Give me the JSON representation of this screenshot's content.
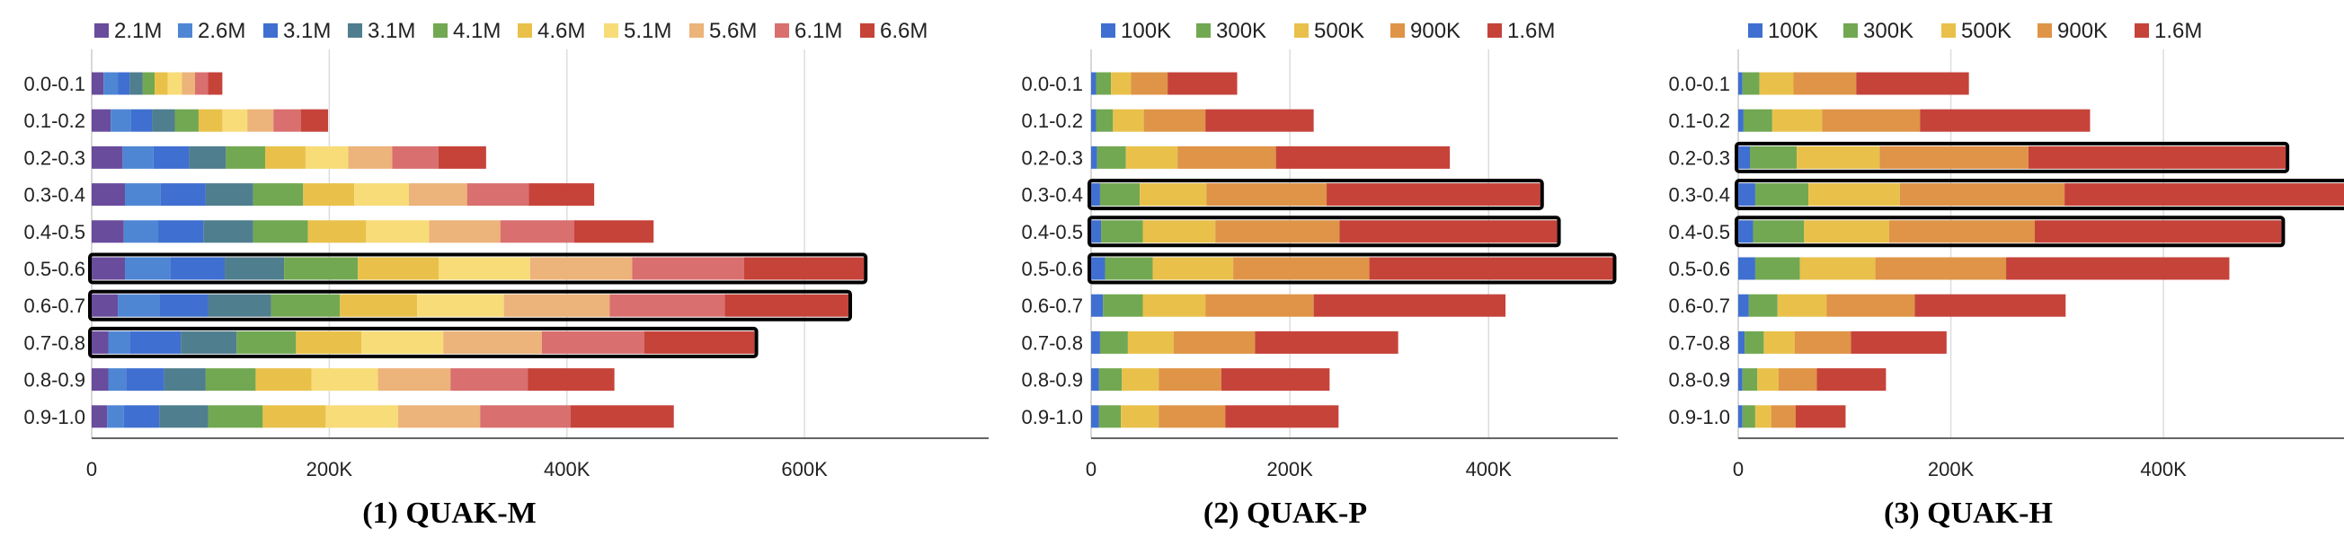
{
  "chart_data": [
    {
      "type": "bar",
      "orientation": "horizontal",
      "stacked": true,
      "title": "(1) QUAK-M",
      "categories": [
        "0.0-0.1",
        "0.1-0.2",
        "0.2-0.3",
        "0.3-0.4",
        "0.4-0.5",
        "0.5-0.6",
        "0.6-0.7",
        "0.7-0.8",
        "0.8-0.9",
        "0.9-1.0"
      ],
      "series": [
        {
          "name": "2.1M",
          "color": "#6a4c9c",
          "values": [
            10000,
            16000,
            26000,
            28000,
            27000,
            28000,
            22000,
            14000,
            14000,
            13000
          ]
        },
        {
          "name": "2.6M",
          "color": "#4e86d4",
          "values": [
            12000,
            17000,
            26000,
            30000,
            29000,
            38000,
            35000,
            18000,
            15000,
            14000
          ]
        },
        {
          "name": "3.1M",
          "color": "#3f6fd0",
          "values": [
            10000,
            18000,
            30000,
            38000,
            38000,
            46000,
            41000,
            43000,
            32000,
            30000
          ]
        },
        {
          "name": "3.1M",
          "color": "#4f7e8e",
          "values": [
            11000,
            19000,
            31000,
            40000,
            42000,
            50000,
            53000,
            47000,
            35000,
            41000
          ]
        },
        {
          "name": "4.1M",
          "color": "#72a852",
          "values": [
            10000,
            20000,
            33000,
            42000,
            46000,
            62000,
            58000,
            50000,
            42000,
            46000
          ]
        },
        {
          "name": "4.6M",
          "color": "#e9c14a",
          "values": [
            11000,
            20000,
            34000,
            43000,
            49000,
            68000,
            65000,
            55000,
            47000,
            53000
          ]
        },
        {
          "name": "5.1M",
          "color": "#f7dc78",
          "values": [
            12000,
            21000,
            36000,
            46000,
            53000,
            77000,
            73000,
            69000,
            56000,
            61000
          ]
        },
        {
          "name": "5.6M",
          "color": "#ecb37a",
          "values": [
            11000,
            22000,
            37000,
            49000,
            60000,
            86000,
            89000,
            83000,
            61000,
            69000
          ]
        },
        {
          "name": "6.1M",
          "color": "#d96f6f",
          "values": [
            11000,
            23000,
            39000,
            52000,
            62000,
            94000,
            97000,
            86000,
            65000,
            76000
          ]
        },
        {
          "name": "6.6M",
          "color": "#c6433a",
          "values": [
            12000,
            23000,
            40000,
            55000,
            67000,
            101000,
            104000,
            93000,
            73000,
            87000
          ]
        }
      ],
      "highlighted": [
        "0.5-0.6",
        "0.6-0.7",
        "0.7-0.8"
      ],
      "xlim": [
        0,
        755000
      ],
      "xticks": [
        0,
        200000,
        400000,
        600000
      ],
      "xtick_labels": [
        "0",
        "200K",
        "400K",
        "600K"
      ],
      "grid": true,
      "legend": "top"
    },
    {
      "type": "bar",
      "orientation": "horizontal",
      "stacked": true,
      "title": "(2) QUAK-P",
      "categories": [
        "0.0-0.1",
        "0.1-0.2",
        "0.2-0.3",
        "0.3-0.4",
        "0.4-0.5",
        "0.5-0.6",
        "0.6-0.7",
        "0.7-0.8",
        "0.8-0.9",
        "0.9-1.0"
      ],
      "series": [
        {
          "name": "100K",
          "color": "#3f6fd0",
          "values": [
            5000,
            5000,
            6000,
            9000,
            10000,
            14000,
            12000,
            9000,
            8000,
            8000
          ]
        },
        {
          "name": "300K",
          "color": "#72a852",
          "values": [
            15000,
            17000,
            29000,
            40000,
            42000,
            48000,
            40000,
            28000,
            23000,
            22000
          ]
        },
        {
          "name": "500K",
          "color": "#e9c14a",
          "values": [
            20000,
            31000,
            52000,
            67000,
            73000,
            81000,
            63000,
            46000,
            37000,
            38000
          ]
        },
        {
          "name": "900K",
          "color": "#df9447",
          "values": [
            37000,
            62000,
            99000,
            121000,
            125000,
            137000,
            109000,
            82000,
            63000,
            67000
          ]
        },
        {
          "name": "1.6M",
          "color": "#c6433a",
          "values": [
            70000,
            109000,
            175000,
            215000,
            219000,
            245000,
            193000,
            144000,
            109000,
            114000
          ]
        }
      ],
      "highlighted": [
        "0.3-0.4",
        "0.4-0.5",
        "0.5-0.6"
      ],
      "xlim": [
        0,
        530000
      ],
      "xticks": [
        0,
        200000,
        400000
      ],
      "xtick_labels": [
        "0",
        "200K",
        "400K"
      ],
      "grid": true,
      "legend": "top"
    },
    {
      "type": "bar",
      "orientation": "horizontal",
      "stacked": true,
      "title": "(3) QUAK-H",
      "categories": [
        "0.0-0.1",
        "0.1-0.2",
        "0.2-0.3",
        "0.3-0.4",
        "0.4-0.5",
        "0.5-0.6",
        "0.6-0.7",
        "0.7-0.8",
        "0.8-0.9",
        "0.9-1.0"
      ],
      "series": [
        {
          "name": "100K",
          "color": "#3f6fd0",
          "values": [
            4000,
            5000,
            11000,
            16000,
            14000,
            16000,
            10000,
            6000,
            4000,
            4000
          ]
        },
        {
          "name": "300K",
          "color": "#72a852",
          "values": [
            16000,
            27000,
            44000,
            50000,
            48000,
            42000,
            27000,
            18000,
            14000,
            12000
          ]
        },
        {
          "name": "500K",
          "color": "#e9c14a",
          "values": [
            32000,
            47000,
            78000,
            86000,
            80000,
            71000,
            46000,
            29000,
            20000,
            15000
          ]
        },
        {
          "name": "900K",
          "color": "#df9447",
          "values": [
            59000,
            92000,
            140000,
            155000,
            137000,
            123000,
            83000,
            53000,
            36000,
            23000
          ]
        },
        {
          "name": "1.6M",
          "color": "#c6433a",
          "values": [
            106000,
            160000,
            242000,
            268000,
            232000,
            210000,
            142000,
            90000,
            65000,
            47000
          ]
        }
      ],
      "highlighted": [
        "0.2-0.3",
        "0.3-0.4",
        "0.4-0.5"
      ],
      "xlim": [
        0,
        580000
      ],
      "xticks": [
        0,
        200000,
        400000
      ],
      "xtick_labels": [
        "0",
        "200K",
        "400K"
      ],
      "grid": true,
      "legend": "top"
    }
  ]
}
